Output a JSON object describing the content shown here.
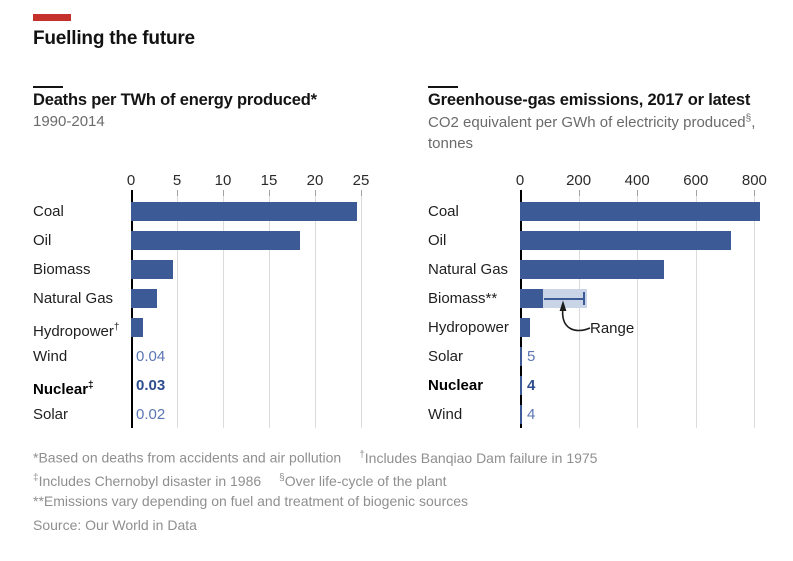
{
  "header": {
    "title": "Fuelling the future",
    "accent_color": "#c5312b"
  },
  "colors": {
    "bar": "#3c5a95",
    "range_band": "#c9d4e6",
    "value_text": "#5b76b4",
    "value_text_bold": "#2f4d8e",
    "gridline": "#dbdbdb",
    "footnote_text": "#8f8f8f"
  },
  "chart_data": [
    {
      "type": "bar",
      "orientation": "horizontal",
      "title": "Deaths per TWh of energy produced*",
      "subtitle": "1990-2014",
      "xlabel": "",
      "ylabel": "",
      "xlim": [
        0,
        25
      ],
      "xticks": [
        0,
        5,
        10,
        15,
        20,
        25
      ],
      "grid": true,
      "categories": [
        "Coal",
        "Oil",
        "Biomass",
        "Natural Gas",
        "Hydropower†",
        "Wind",
        "Nuclear‡",
        "Solar"
      ],
      "values": [
        24.6,
        18.4,
        4.6,
        2.8,
        1.3,
        0.04,
        0.03,
        0.02
      ],
      "rows": [
        {
          "label": "Coal",
          "value": 24.6
        },
        {
          "label": "Oil",
          "value": 18.4
        },
        {
          "label": "Biomass",
          "value": 4.6
        },
        {
          "label": "Natural Gas",
          "value": 2.8
        },
        {
          "label": "Hydropower",
          "sup": "†",
          "value": 1.3
        },
        {
          "label": "Wind",
          "value": 0.04,
          "value_label": "0.04"
        },
        {
          "label": "Nuclear",
          "sup": "‡",
          "value": 0.03,
          "value_label": "0.03",
          "bold": true
        },
        {
          "label": "Solar",
          "value": 0.02,
          "value_label": "0.02"
        }
      ]
    },
    {
      "type": "bar",
      "orientation": "horizontal",
      "title": "Greenhouse-gas emissions, 2017 or latest",
      "subtitle_main": "CO2 equivalent per GWh of electricity produced",
      "subtitle_sup": "§",
      "subtitle_tail": ",",
      "subtitle_line2": "tonnes",
      "xlabel": "",
      "ylabel": "",
      "xlim": [
        0,
        800
      ],
      "xticks": [
        0,
        200,
        400,
        600,
        800
      ],
      "grid": true,
      "categories": [
        "Coal",
        "Oil",
        "Natural Gas",
        "Biomass**",
        "Hydropower",
        "Solar",
        "Nuclear",
        "Wind"
      ],
      "values": [
        820,
        720,
        490,
        80,
        34,
        5,
        4,
        4
      ],
      "annotation": "Range",
      "rows": [
        {
          "label": "Coal",
          "value": 820
        },
        {
          "label": "Oil",
          "value": 720
        },
        {
          "label": "Natural Gas",
          "value": 490
        },
        {
          "label": "Biomass**",
          "value": 80,
          "range": [
            80,
            230
          ]
        },
        {
          "label": "Hydropower",
          "value": 34
        },
        {
          "label": "Solar",
          "value": 5,
          "value_label": "5"
        },
        {
          "label": "Nuclear",
          "value": 4,
          "value_label": "4",
          "bold": true
        },
        {
          "label": "Wind",
          "value": 4,
          "value_label": "4"
        }
      ]
    }
  ],
  "footnotes": {
    "lines": [
      [
        {
          "text": "*Based on deaths from accidents and air pollution"
        },
        {
          "sup": "†",
          "text": "Includes Banqiao Dam failure in 1975",
          "gap": true
        }
      ],
      [
        {
          "sup": "‡",
          "text": "Includes Chernobyl disaster in 1986"
        },
        {
          "sup": "§",
          "text": "Over life-cycle of the plant",
          "gap": true
        }
      ],
      [
        {
          "text": "**Emissions vary depending on fuel and treatment of biogenic sources"
        }
      ]
    ],
    "source": "Source: Our World in Data"
  }
}
